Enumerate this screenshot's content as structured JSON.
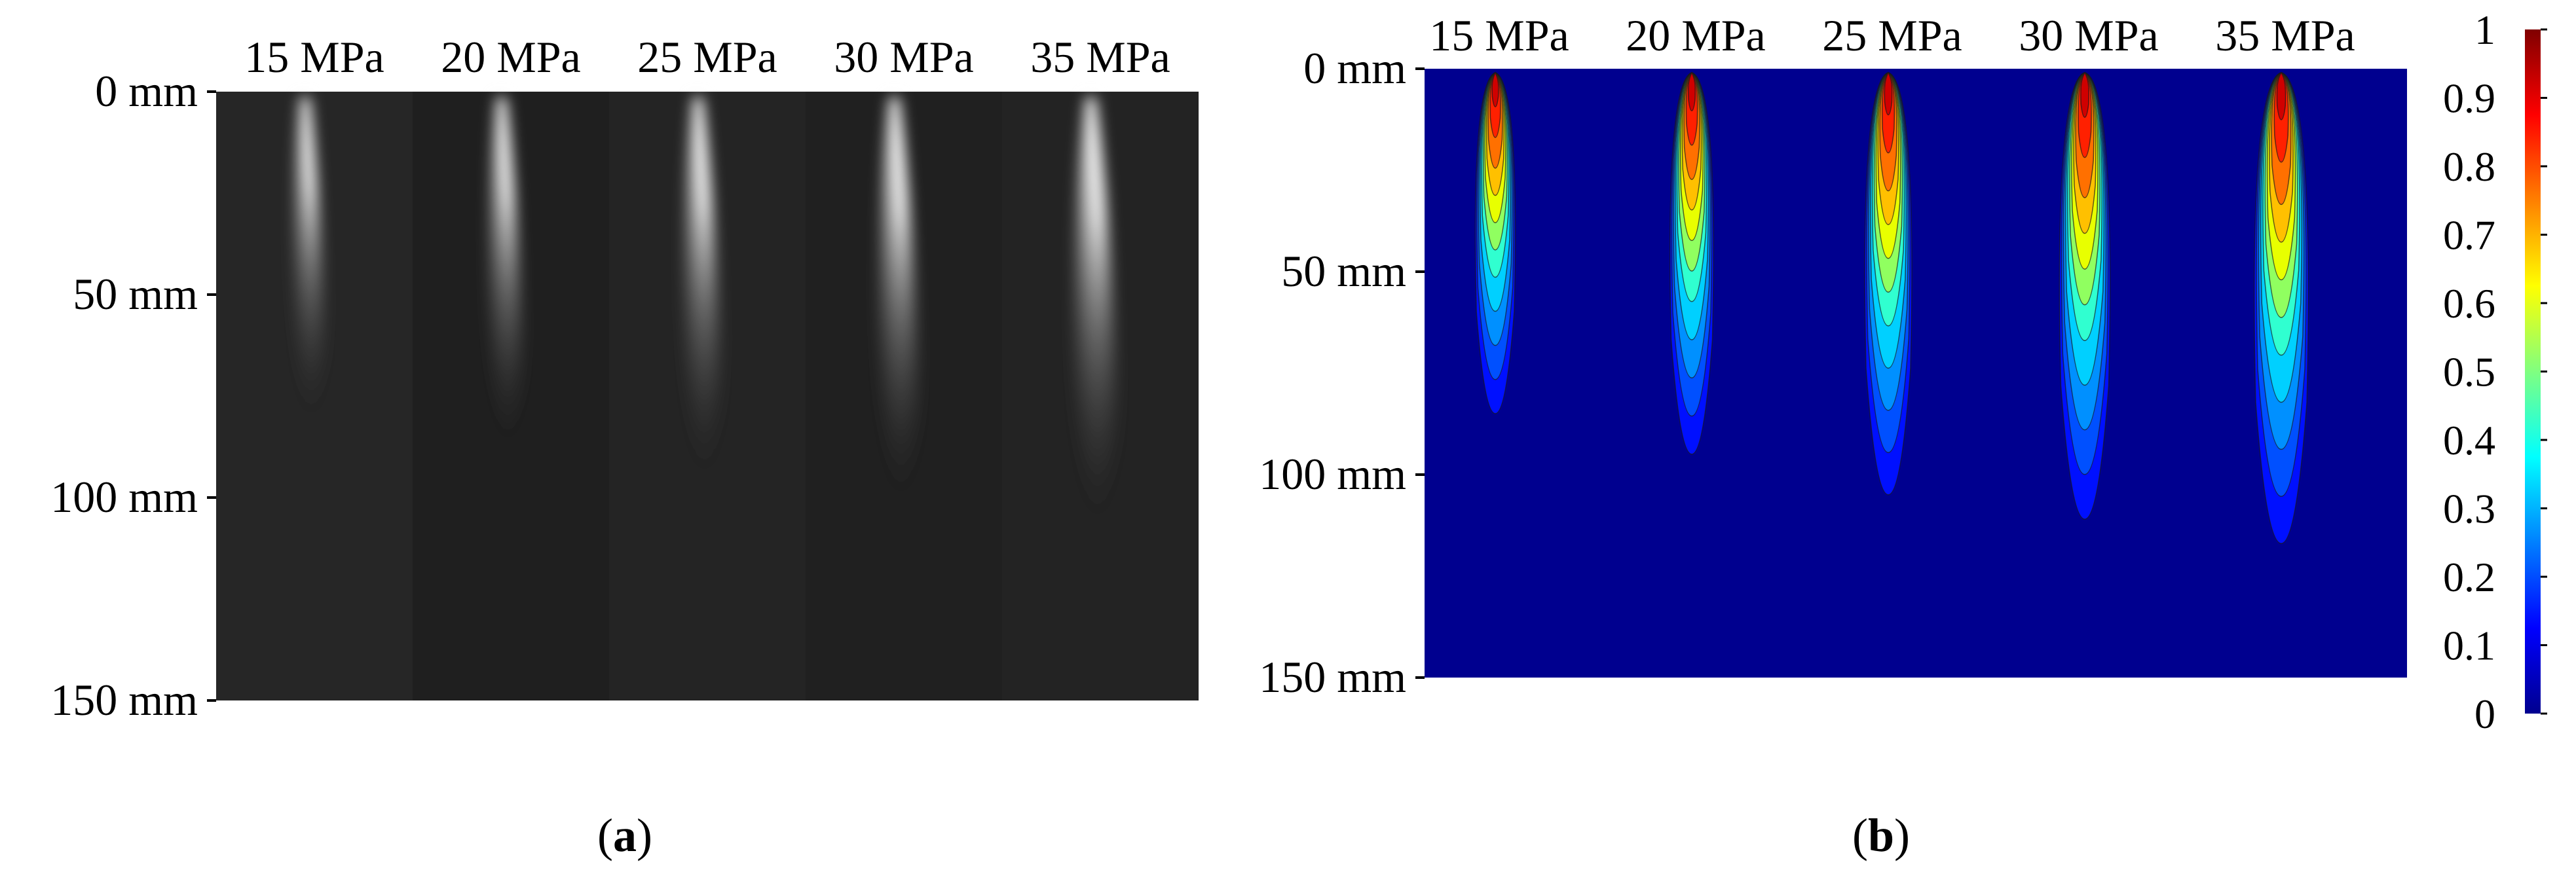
{
  "panels": [
    {
      "id": "a",
      "caption_open": "(",
      "caption_letter": "a",
      "caption_close": ")",
      "pressure_labels": [
        "15 MPa",
        "20 MPa",
        "25 MPa",
        "30 MPa",
        "35 MPa"
      ],
      "y_tick_labels": [
        "0 mm",
        "50 mm",
        "100 mm",
        "150 mm"
      ],
      "spray_penetration_mm": [
        85,
        92,
        100,
        106,
        112
      ],
      "background_color": "#222222"
    },
    {
      "id": "b",
      "caption_open": "(",
      "caption_letter": "b",
      "caption_close": ")",
      "pressure_labels": [
        "15 MPa",
        "20 MPa",
        "25 MPa",
        "30 MPa",
        "35 MPa"
      ],
      "y_tick_labels": [
        "0 mm",
        "50 mm",
        "100 mm",
        "150 mm"
      ],
      "spray_penetration_mm": [
        84,
        94,
        104,
        110,
        116
      ],
      "background_color": "#00008f"
    }
  ],
  "colorbar": {
    "tick_labels": [
      "1",
      "0.9",
      "0.8",
      "0.7",
      "0.6",
      "0.5",
      "0.4",
      "0.3",
      "0.2",
      "0.1",
      "0"
    ],
    "colors": [
      "#00008f",
      "#0000ff",
      "#0080ff",
      "#00ffff",
      "#80ff80",
      "#ffff00",
      "#ff8000",
      "#ff0000",
      "#800000"
    ]
  }
}
